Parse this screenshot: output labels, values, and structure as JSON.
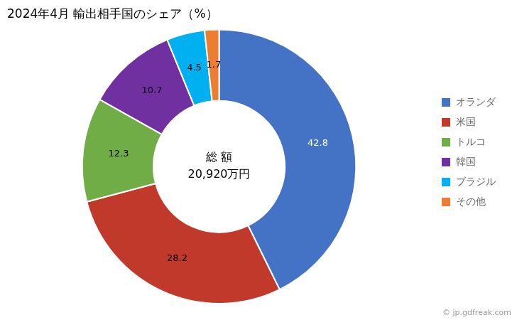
{
  "chart_data": {
    "type": "doughnut",
    "title": "2024年4月 輸出相手国のシェア（%）",
    "categories": [
      "オランダ",
      "米国",
      "トルコ",
      "韓国",
      "ブラジル",
      "その他"
    ],
    "values": [
      42.8,
      28.2,
      12.3,
      10.7,
      4.5,
      1.7
    ],
    "colors": [
      "#4472C4",
      "#C0392B",
      "#70AD47",
      "#7030A0",
      "#00B0F0",
      "#ED7D31"
    ],
    "data_labels": true,
    "legend": "right",
    "annotations": [
      "総 額",
      "20,920万円",
      "© jp.gdfreak.com"
    ]
  }
}
